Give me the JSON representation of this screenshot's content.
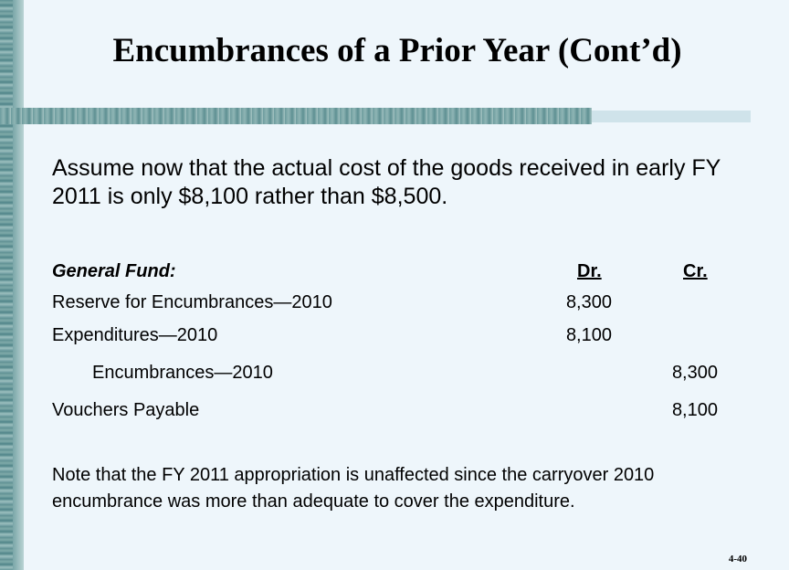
{
  "slide": {
    "title": "Encumbrances of a Prior Year (Cont’d)",
    "intro": "Assume now that the actual cost of the goods received in early FY 2011 is only $8,100 rather than $8,500.",
    "journal": {
      "fund_label": "General Fund:",
      "dr_label": "Dr.",
      "cr_label": "Cr.",
      "entries": [
        {
          "account": "Reserve for Encumbrances—2010",
          "debit": "8,300",
          "credit": ""
        },
        {
          "account": "Expenditures—2010",
          "debit": "8,100",
          "credit": ""
        },
        {
          "account": "Encumbrances—2010",
          "debit": "",
          "credit": "8,300"
        },
        {
          "account": "Vouchers Payable",
          "debit": "",
          "credit": "8,100"
        }
      ]
    },
    "note": "Note that  the FY 2011 appropriation is unaffected since the carryover 2010 encumbrance was more than adequate to cover the expenditure.",
    "page_number": "4-40"
  }
}
